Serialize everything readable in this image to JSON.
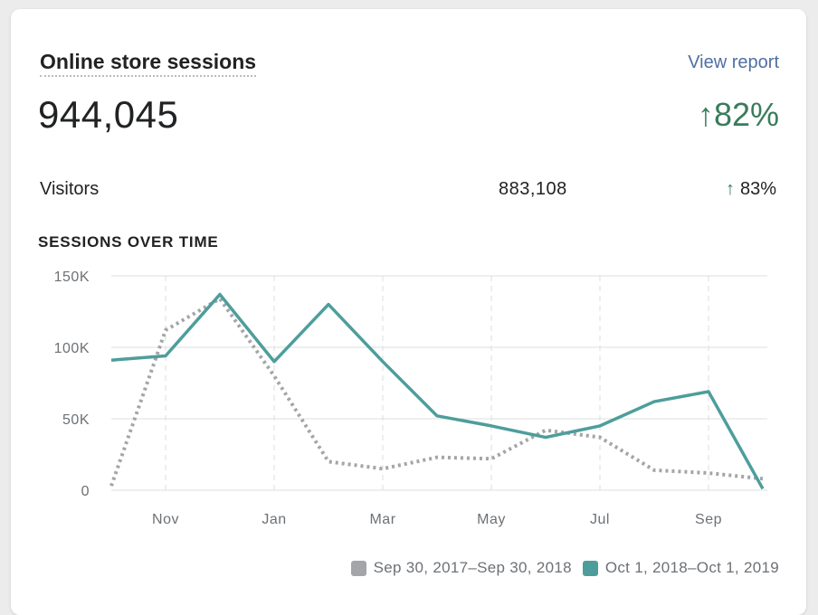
{
  "card": {
    "title": "Online store sessions",
    "view_report": "View report",
    "total": "944,045",
    "total_change": "↑82%"
  },
  "visitors": {
    "label": "Visitors",
    "value": "883,108",
    "change_arrow": "↑",
    "change_value": "83%"
  },
  "section_title": "SESSIONS OVER TIME",
  "colors": {
    "current": "#4d9e9b",
    "previous": "#a3a5a8",
    "positive": "#3a7c5b",
    "link": "#4f6fa3"
  },
  "chart_data": {
    "type": "line",
    "title": "SESSIONS OVER TIME",
    "ylim": [
      0,
      150000
    ],
    "y_ticks": [
      0,
      50000,
      100000,
      150000
    ],
    "y_tick_labels": [
      "0",
      "50K",
      "100K",
      "150K"
    ],
    "x_tick_labels": [
      "Nov",
      "Jan",
      "Mar",
      "May",
      "Jul",
      "Sep"
    ],
    "x_tick_index": [
      1,
      3,
      5,
      7,
      9,
      11
    ],
    "grid": true,
    "legend_position": "bottom-right",
    "series": [
      {
        "name": "Sep 30, 2017–Sep 30, 2018",
        "style": "dotted",
        "color": "#a3a5a8",
        "values": [
          3000,
          112000,
          134000,
          80000,
          20000,
          15000,
          23000,
          22000,
          42000,
          37000,
          14000,
          12000,
          8000
        ]
      },
      {
        "name": "Oct 1, 2018–Oct 1, 2019",
        "style": "solid",
        "color": "#4d9e9b",
        "values": [
          91000,
          94000,
          137000,
          90000,
          130000,
          90000,
          52000,
          45000,
          37000,
          45000,
          62000,
          69000,
          1000
        ]
      }
    ]
  }
}
